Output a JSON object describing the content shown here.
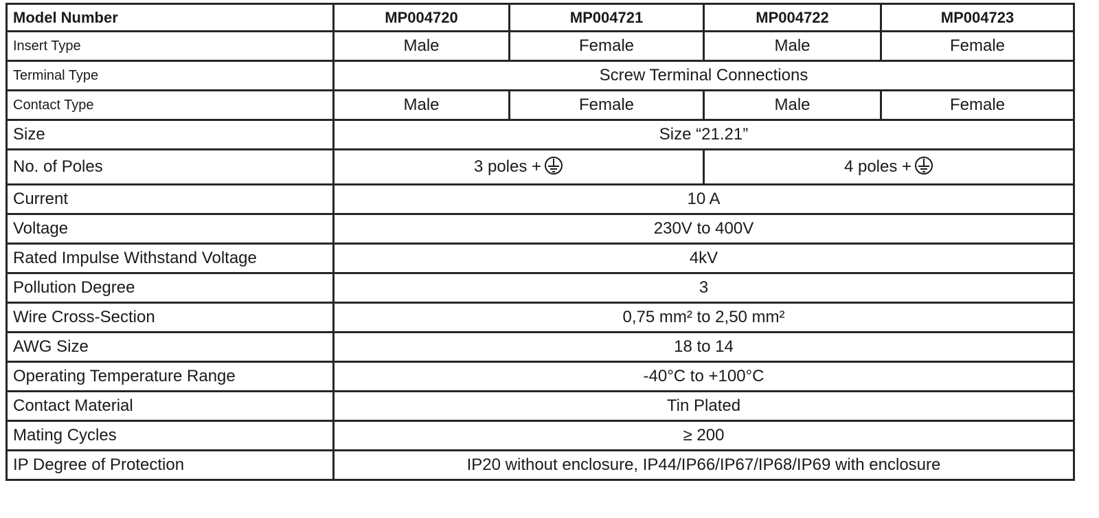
{
  "header": {
    "label": "Model Number",
    "models": [
      "MP004720",
      "MP004721",
      "MP004722",
      "MP004723"
    ]
  },
  "rows": {
    "insert_type": {
      "label": "Insert Type",
      "values": [
        "Male",
        "Female",
        "Male",
        "Female"
      ]
    },
    "terminal_type": {
      "label": "Terminal Type",
      "value": "Screw Terminal Connections"
    },
    "contact_type": {
      "label": "Contact Type",
      "values": [
        "Male",
        "Female",
        "Male",
        "Female"
      ]
    },
    "size": {
      "label": "Size",
      "value": "Size “21.21”"
    },
    "poles": {
      "label": "No. of Poles",
      "values": [
        "3 poles +",
        "4 poles +"
      ],
      "icon": "ground-symbol-icon"
    },
    "current": {
      "label": "Current",
      "value": "10 A"
    },
    "voltage": {
      "label": "Voltage",
      "value": "230V to 400V"
    },
    "impulse": {
      "label": "Rated Impulse Withstand Voltage",
      "value": "4kV"
    },
    "pollution": {
      "label": "Pollution Degree",
      "value": "3"
    },
    "wire": {
      "label": "Wire Cross-Section",
      "value": "0,75 mm² to 2,50 mm²"
    },
    "awg": {
      "label": "AWG Size",
      "value": "18 to 14"
    },
    "temperature": {
      "label": "Operating Temperature Range",
      "value": "-40°C to +100°C"
    },
    "material": {
      "label": "Contact Material",
      "value": "Tin Plated"
    },
    "cycles": {
      "label": "Mating Cycles",
      "value": "≥ 200"
    },
    "ip": {
      "label": "IP Degree of Protection",
      "value": "IP20 without enclosure, IP44/IP66/IP67/IP68/IP69 with enclosure"
    }
  }
}
